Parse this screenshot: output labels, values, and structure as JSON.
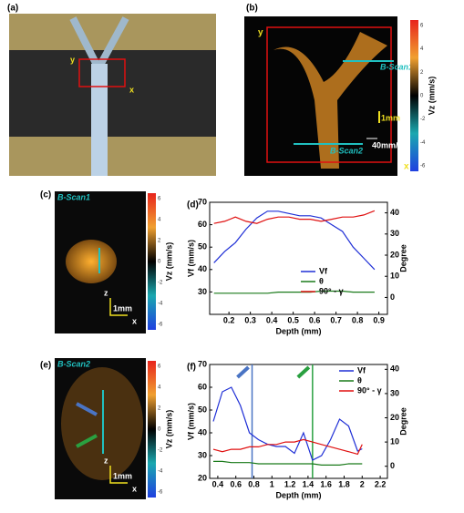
{
  "panels": {
    "a": {
      "label": "(a)",
      "y": "y",
      "x": "x"
    },
    "b": {
      "label": "(b)",
      "y": "y",
      "x": "x",
      "scan1": "B-Scan1",
      "scan2": "B-Scan2",
      "scale": "1mm",
      "speed": "40mm/s",
      "cbar_label": "Vz (mm/s)",
      "cbar_ticks": [
        "6",
        "4",
        "2",
        "0",
        "-2",
        "-4",
        "-6"
      ]
    },
    "c": {
      "label": "(c)",
      "scan": "B-Scan1",
      "z": "z",
      "x": "x",
      "scale": "1mm",
      "cbar_label": "Vz (mm/s)",
      "cbar_ticks": [
        "6",
        "4",
        "2",
        "0",
        "-2",
        "-4",
        "-6"
      ]
    },
    "e": {
      "label": "(e)",
      "scan": "B-Scan2",
      "z": "z",
      "x": "x",
      "scale": "1mm",
      "cbar_label": "Vz (mm/s)",
      "cbar_ticks": [
        "6",
        "4",
        "2",
        "0",
        "-2",
        "-4",
        "-6"
      ]
    }
  },
  "chart_data": [
    {
      "type": "line",
      "panel": "(d)",
      "x_label": "Depth (mm)",
      "y_label": "Vf (mm/s)",
      "y2_label": "Degree",
      "x": [
        0.13,
        0.18,
        0.23,
        0.28,
        0.33,
        0.38,
        0.43,
        0.48,
        0.53,
        0.58,
        0.63,
        0.68,
        0.73,
        0.78,
        0.83,
        0.88
      ],
      "series": [
        {
          "name": "Vf",
          "color": "#1f2fd6",
          "values": [
            43,
            48,
            52,
            58,
            63,
            66,
            66,
            65,
            64,
            64,
            63,
            60,
            57,
            50,
            45,
            40
          ]
        },
        {
          "name": "θ",
          "color": "#1a7a1a",
          "axis": "y2",
          "values": [
            2,
            2,
            2,
            2,
            2,
            2,
            2.5,
            2.5,
            2.5,
            2.5,
            3,
            3,
            3,
            2.5,
            2.5,
            2.5
          ]
        },
        {
          "name": "90° - γ",
          "color": "#e01010",
          "axis": "y2",
          "values": [
            35,
            36,
            38,
            36,
            35,
            37,
            38,
            38,
            37,
            37,
            36,
            37,
            38,
            38,
            39,
            41
          ]
        }
      ],
      "xlim": [
        0.11,
        0.94
      ],
      "xticks": [
        0.2,
        0.3,
        0.4,
        0.5,
        0.6,
        0.7,
        0.8,
        0.9
      ],
      "ylim": [
        20,
        70
      ],
      "yticks": [
        30,
        40,
        50,
        60,
        70
      ],
      "y2lim": [
        -8,
        45
      ],
      "y2ticks": [
        0,
        10,
        20,
        30,
        40
      ]
    },
    {
      "type": "line",
      "panel": "(f)",
      "x_label": "Depth (mm)",
      "y_label": "Vf (mm/s)",
      "y2_label": "Degree",
      "x": [
        0.35,
        0.45,
        0.55,
        0.65,
        0.75,
        0.85,
        0.95,
        1.05,
        1.15,
        1.25,
        1.35,
        1.45,
        1.55,
        1.65,
        1.75,
        1.85,
        1.95,
        2.0
      ],
      "series": [
        {
          "name": "Vf",
          "color": "#1f2fd6",
          "values": [
            45,
            58,
            60,
            52,
            40,
            37,
            35,
            34,
            34,
            31,
            40,
            28,
            30,
            37,
            46,
            43,
            32,
            33
          ]
        },
        {
          "name": "θ",
          "color": "#1a7a1a",
          "axis": "y2",
          "values": [
            2,
            2,
            1.5,
            1.5,
            1.5,
            1,
            1,
            1,
            1,
            1,
            1,
            1,
            0.5,
            0.5,
            0.5,
            1,
            1,
            1
          ]
        },
        {
          "name": "90° - γ",
          "color": "#e01010",
          "axis": "y2",
          "values": [
            7,
            6,
            7,
            7,
            8,
            8,
            9,
            9,
            10,
            10,
            11,
            10,
            9,
            8,
            7,
            6,
            5,
            9
          ]
        }
      ],
      "markers": [
        {
          "x": 0.78,
          "color": "#4a74c4"
        },
        {
          "x": 1.45,
          "color": "#2aa040"
        }
      ],
      "xlim": [
        0.31,
        2.28
      ],
      "xticks": [
        0.4,
        0.6,
        0.8,
        1.0,
        1.2,
        1.4,
        1.6,
        1.8,
        2.0,
        2.2
      ],
      "ylim": [
        20,
        70
      ],
      "yticks": [
        20,
        30,
        40,
        50,
        60,
        70
      ],
      "y2lim": [
        -5,
        42
      ],
      "y2ticks": [
        0,
        10,
        20,
        30,
        40
      ]
    }
  ]
}
